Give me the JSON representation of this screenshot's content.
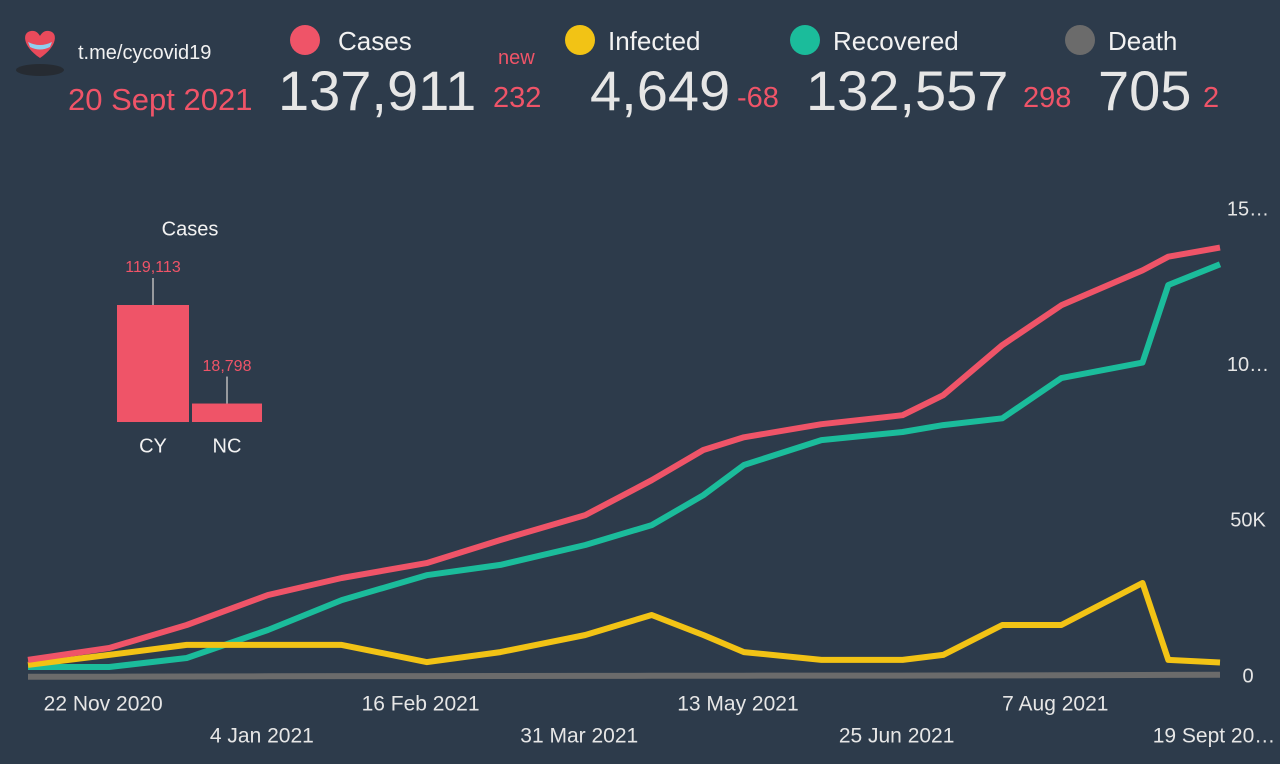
{
  "header": {
    "source": "t.me/cycovid19",
    "date": "20 Sept 2021",
    "new_label": "new",
    "stats": [
      {
        "value": "137,911",
        "change": "232"
      },
      {
        "value": "4,649",
        "change": "-68"
      },
      {
        "value": "132,557",
        "change": "298"
      },
      {
        "value": "705",
        "change": "2"
      }
    ]
  },
  "chart_data": [
    {
      "type": "line",
      "x": [
        "2020-10-31",
        "2020-11-22",
        "2020-12-13",
        "2021-01-04",
        "2021-01-24",
        "2021-02-16",
        "2021-03-08",
        "2021-03-31",
        "2021-04-18",
        "2021-05-02",
        "2021-05-13",
        "2021-06-03",
        "2021-06-25",
        "2021-07-06",
        "2021-07-22",
        "2021-08-07",
        "2021-08-29",
        "2021-09-05",
        "2021-09-19"
      ],
      "xlim": [
        "2020-10-31",
        "2021-09-19"
      ],
      "xticks": [
        {
          "value": "2020-11-22",
          "label": "22 Nov 2020"
        },
        {
          "value": "2021-01-04",
          "label": "4 Jan 2021"
        },
        {
          "value": "2021-02-16",
          "label": "16 Feb 2021"
        },
        {
          "value": "2021-03-31",
          "label": "31 Mar 2021"
        },
        {
          "value": "2021-05-13",
          "label": "13 May 2021"
        },
        {
          "value": "2021-06-25",
          "label": "25 Jun 2021"
        },
        {
          "value": "2021-08-07",
          "label": "7 Aug 2021"
        },
        {
          "value": "2021-09-19",
          "label": "19 Sept 20…"
        }
      ],
      "ylim": [
        0,
        150000
      ],
      "yticks": [
        0,
        {
          "value": 50000,
          "label": "50K"
        },
        {
          "value": 100000,
          "label": "10…"
        },
        {
          "value": 150000,
          "label": "15…"
        }
      ],
      "series": [
        {
          "name": "Cases",
          "color": "#ef5468",
          "values": [
            5500,
            9300,
            16700,
            26300,
            31800,
            36600,
            44000,
            52000,
            63200,
            72900,
            77000,
            81200,
            84100,
            90500,
            106600,
            119400,
            130600,
            135000,
            137911
          ]
        },
        {
          "name": "Infected",
          "color": "#f2c315",
          "values": [
            3900,
            7100,
            10300,
            10300,
            10300,
            4800,
            8000,
            13500,
            19900,
            13500,
            8000,
            5500,
            5500,
            7100,
            16700,
            16700,
            30200,
            5500,
            4649
          ]
        },
        {
          "name": "Recovered",
          "color": "#1bbc9b",
          "values": [
            3200,
            3200,
            6100,
            15100,
            24700,
            32700,
            36000,
            42400,
            48800,
            58400,
            68100,
            76100,
            78700,
            80900,
            83100,
            96000,
            101000,
            125900,
            132557
          ]
        },
        {
          "name": "Death",
          "color": "#6b6b6b",
          "values": [
            60,
            90,
            150,
            230,
            280,
            300,
            330,
            360,
            390,
            410,
            430,
            450,
            460,
            470,
            500,
            560,
            630,
            680,
            705
          ]
        }
      ]
    },
    {
      "type": "bar",
      "title": "Cases",
      "categories": [
        "CY",
        "NC"
      ],
      "values": [
        119113,
        18798
      ],
      "value_labels": [
        "119,113",
        "18,798"
      ],
      "color": "#ef5468"
    }
  ]
}
